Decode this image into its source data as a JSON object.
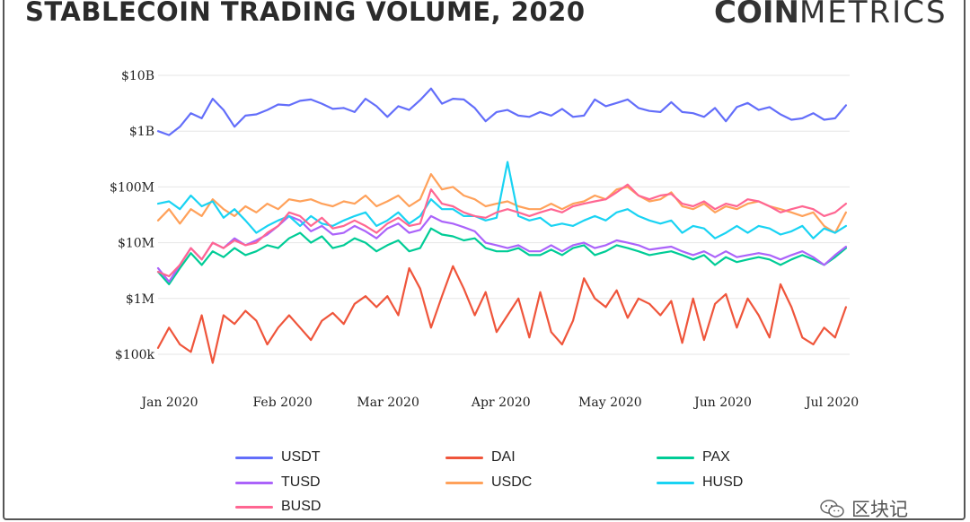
{
  "header": {
    "title": "STABLECOIN TRADING VOLUME, 2020",
    "logo_bold": "COIN",
    "logo_light": "METRICS"
  },
  "watermark": {
    "text": "区块记"
  },
  "chart_data": {
    "type": "line",
    "title": "STABLECOIN TRADING VOLUME, 2020",
    "xlabel": "",
    "ylabel": "",
    "y_scale": "log",
    "ylim": [
      100000,
      10000000000
    ],
    "y_ticks": [
      {
        "value": 10000000000,
        "label": "$10B"
      },
      {
        "value": 1000000000,
        "label": "$1B"
      },
      {
        "value": 100000000,
        "label": "$100M"
      },
      {
        "value": 10000000,
        "label": "$10M"
      },
      {
        "value": 1000000,
        "label": "$1M"
      },
      {
        "value": 100000,
        "label": "$100k"
      }
    ],
    "x_ticks": [
      {
        "value": 1,
        "label": "Jan 2020"
      },
      {
        "value": 32,
        "label": "Feb 2020"
      },
      {
        "value": 61,
        "label": "Mar 2020"
      },
      {
        "value": 92,
        "label": "Apr 2020"
      },
      {
        "value": 122,
        "label": "May 2020"
      },
      {
        "value": 153,
        "label": "Jun 2020"
      },
      {
        "value": 183,
        "label": "Jul 2020"
      }
    ],
    "x_unit": "day of year 2020",
    "grid": true,
    "legend_position": "bottom",
    "series": [
      {
        "name": "USDT",
        "color": "#636efa",
        "x": [
          1,
          4,
          7,
          10,
          13,
          16,
          19,
          22,
          25,
          28,
          31,
          34,
          37,
          40,
          43,
          46,
          49,
          52,
          55,
          58,
          61,
          64,
          67,
          70,
          73,
          76,
          79,
          82,
          85,
          88,
          91,
          94,
          97,
          100,
          103,
          106,
          109,
          112,
          115,
          118,
          121,
          124,
          127,
          130,
          133,
          136,
          139,
          142,
          145,
          148,
          151,
          154,
          157,
          160,
          163,
          166,
          169,
          172,
          175,
          178,
          181,
          184,
          187,
          190
        ],
        "values": [
          1000000000,
          850000000,
          1200000000,
          2100000000,
          1700000000,
          3800000000,
          2400000000,
          1200000000,
          1900000000,
          2000000000,
          2400000000,
          3000000000,
          2900000000,
          3500000000,
          3700000000,
          3100000000,
          2500000000,
          2600000000,
          2200000000,
          3800000000,
          2800000000,
          1800000000,
          2800000000,
          2400000000,
          3600000000,
          5800000000,
          3100000000,
          3800000000,
          3700000000,
          2600000000,
          1500000000,
          2200000000,
          2400000000,
          1900000000,
          1800000000,
          2200000000,
          1900000000,
          2500000000,
          1800000000,
          1900000000,
          3700000000,
          2800000000,
          3200000000,
          3700000000,
          2600000000,
          2300000000,
          2200000000,
          3300000000,
          2200000000,
          2100000000,
          1800000000,
          2600000000,
          1500000000,
          2700000000,
          3200000000,
          2400000000,
          2700000000,
          2000000000,
          1600000000,
          1700000000,
          2100000000,
          1600000000,
          1700000000,
          2900000000
        ]
      },
      {
        "name": "DAI",
        "color": "#ef553b",
        "x": [
          1,
          4,
          7,
          10,
          13,
          16,
          19,
          22,
          25,
          28,
          31,
          34,
          37,
          40,
          43,
          46,
          49,
          52,
          55,
          58,
          61,
          64,
          67,
          70,
          73,
          76,
          79,
          82,
          85,
          88,
          91,
          94,
          97,
          100,
          103,
          106,
          109,
          112,
          115,
          118,
          121,
          124,
          127,
          130,
          133,
          136,
          139,
          142,
          145,
          148,
          151,
          154,
          157,
          160,
          163,
          166,
          169,
          172,
          175,
          178,
          181,
          184,
          187,
          190
        ],
        "values": [
          130000,
          300000,
          150000,
          110000,
          500000,
          70000,
          500000,
          350000,
          600000,
          400000,
          150000,
          300000,
          500000,
          300000,
          180000,
          400000,
          550000,
          350000,
          800000,
          1100000,
          700000,
          1100000,
          500000,
          3500000,
          1500000,
          300000,
          1100000,
          3800000,
          1500000,
          500000,
          1300000,
          250000,
          500000,
          1000000,
          200000,
          1300000,
          250000,
          150000,
          400000,
          2300000,
          1000000,
          700000,
          1400000,
          450000,
          1000000,
          800000,
          500000,
          900000,
          160000,
          1000000,
          180000,
          800000,
          1200000,
          300000,
          1000000,
          500000,
          200000,
          1800000,
          700000,
          200000,
          150000,
          300000,
          200000,
          700000
        ]
      },
      {
        "name": "PAX",
        "color": "#00cc96",
        "x": [
          1,
          4,
          7,
          10,
          13,
          16,
          19,
          22,
          25,
          28,
          31,
          34,
          37,
          40,
          43,
          46,
          49,
          52,
          55,
          58,
          61,
          64,
          67,
          70,
          73,
          76,
          79,
          82,
          85,
          88,
          91,
          94,
          97,
          100,
          103,
          106,
          109,
          112,
          115,
          118,
          121,
          124,
          127,
          130,
          133,
          136,
          139,
          142,
          145,
          148,
          151,
          154,
          157,
          160,
          163,
          166,
          169,
          172,
          175,
          178,
          181,
          184,
          187,
          190
        ],
        "values": [
          3000000,
          1800000,
          3500000,
          6500000,
          4000000,
          7000000,
          5500000,
          8000000,
          6000000,
          7000000,
          9000000,
          8000000,
          12000000,
          15000000,
          10000000,
          13000000,
          8000000,
          9000000,
          12000000,
          10000000,
          7000000,
          9000000,
          11000000,
          7000000,
          8000000,
          18000000,
          14000000,
          13000000,
          11000000,
          12000000,
          8000000,
          7000000,
          7000000,
          8000000,
          6000000,
          6000000,
          7500000,
          6000000,
          8000000,
          9000000,
          6000000,
          7000000,
          9000000,
          8000000,
          7000000,
          6000000,
          6500000,
          7000000,
          6000000,
          5000000,
          6000000,
          4000000,
          5500000,
          4500000,
          5000000,
          5500000,
          5000000,
          4000000,
          5000000,
          6000000,
          5000000,
          4000000,
          5500000,
          8000000
        ]
      },
      {
        "name": "TUSD",
        "color": "#ab63fa",
        "x": [
          1,
          4,
          7,
          10,
          13,
          16,
          19,
          22,
          25,
          28,
          31,
          34,
          37,
          40,
          43,
          46,
          49,
          52,
          55,
          58,
          61,
          64,
          67,
          70,
          73,
          76,
          79,
          82,
          85,
          88,
          91,
          94,
          97,
          100,
          103,
          106,
          109,
          112,
          115,
          118,
          121,
          124,
          127,
          130,
          133,
          136,
          139,
          142,
          145,
          148,
          151,
          154,
          157,
          160,
          163,
          166,
          169,
          172,
          175,
          178,
          181,
          184,
          187,
          190
        ],
        "values": [
          3500000,
          2000000,
          4000000,
          8000000,
          5000000,
          10000000,
          8000000,
          12000000,
          9000000,
          11000000,
          14000000,
          20000000,
          30000000,
          25000000,
          16000000,
          20000000,
          14000000,
          15000000,
          20000000,
          16000000,
          12000000,
          18000000,
          22000000,
          15000000,
          17000000,
          30000000,
          24000000,
          22000000,
          19000000,
          16000000,
          10000000,
          9000000,
          8000000,
          9000000,
          7000000,
          7000000,
          9000000,
          7000000,
          9000000,
          10000000,
          8000000,
          9000000,
          11000000,
          10000000,
          9000000,
          7500000,
          8000000,
          8500000,
          7000000,
          6000000,
          7000000,
          5500000,
          7000000,
          5500000,
          6000000,
          6500000,
          6000000,
          5000000,
          6000000,
          7000000,
          5500000,
          4000000,
          6000000,
          8500000
        ]
      },
      {
        "name": "USDC",
        "color": "#ffa15a",
        "x": [
          1,
          4,
          7,
          10,
          13,
          16,
          19,
          22,
          25,
          28,
          31,
          34,
          37,
          40,
          43,
          46,
          49,
          52,
          55,
          58,
          61,
          64,
          67,
          70,
          73,
          76,
          79,
          82,
          85,
          88,
          91,
          94,
          97,
          100,
          103,
          106,
          109,
          112,
          115,
          118,
          121,
          124,
          127,
          130,
          133,
          136,
          139,
          142,
          145,
          148,
          151,
          154,
          157,
          160,
          163,
          166,
          169,
          172,
          175,
          178,
          181,
          184,
          187,
          190
        ],
        "values": [
          25000000,
          40000000,
          22000000,
          40000000,
          30000000,
          60000000,
          40000000,
          30000000,
          45000000,
          35000000,
          50000000,
          40000000,
          60000000,
          55000000,
          60000000,
          50000000,
          45000000,
          55000000,
          50000000,
          70000000,
          45000000,
          55000000,
          70000000,
          45000000,
          60000000,
          170000000,
          90000000,
          100000000,
          70000000,
          60000000,
          45000000,
          50000000,
          55000000,
          45000000,
          40000000,
          40000000,
          50000000,
          40000000,
          50000000,
          55000000,
          70000000,
          60000000,
          90000000,
          100000000,
          70000000,
          55000000,
          60000000,
          80000000,
          45000000,
          40000000,
          50000000,
          35000000,
          45000000,
          40000000,
          50000000,
          55000000,
          45000000,
          40000000,
          35000000,
          30000000,
          35000000,
          20000000,
          15000000,
          35000000
        ]
      },
      {
        "name": "HUSD",
        "color": "#19d3f3",
        "x": [
          1,
          4,
          7,
          10,
          13,
          16,
          19,
          22,
          25,
          28,
          31,
          34,
          37,
          40,
          43,
          46,
          49,
          52,
          55,
          58,
          61,
          64,
          67,
          70,
          73,
          76,
          79,
          82,
          85,
          88,
          91,
          94,
          97,
          100,
          103,
          106,
          109,
          112,
          115,
          118,
          121,
          124,
          127,
          130,
          133,
          136,
          139,
          142,
          145,
          148,
          151,
          154,
          157,
          160,
          163,
          166,
          169,
          172,
          175,
          178,
          181,
          184,
          187,
          190
        ],
        "values": [
          50000000,
          55000000,
          40000000,
          70000000,
          45000000,
          55000000,
          28000000,
          40000000,
          25000000,
          15000000,
          20000000,
          25000000,
          30000000,
          20000000,
          30000000,
          22000000,
          20000000,
          25000000,
          30000000,
          35000000,
          20000000,
          25000000,
          35000000,
          22000000,
          30000000,
          60000000,
          40000000,
          40000000,
          30000000,
          30000000,
          25000000,
          28000000,
          280000000,
          30000000,
          25000000,
          28000000,
          20000000,
          22000000,
          20000000,
          25000000,
          30000000,
          25000000,
          35000000,
          40000000,
          30000000,
          25000000,
          22000000,
          25000000,
          15000000,
          20000000,
          18000000,
          12000000,
          15000000,
          20000000,
          15000000,
          20000000,
          18000000,
          14000000,
          16000000,
          20000000,
          12000000,
          18000000,
          15000000,
          20000000
        ]
      },
      {
        "name": "BUSD",
        "color": "#ff6692",
        "x": [
          1,
          4,
          7,
          10,
          13,
          16,
          19,
          22,
          25,
          28,
          31,
          34,
          37,
          40,
          43,
          46,
          49,
          52,
          55,
          58,
          61,
          64,
          67,
          70,
          73,
          76,
          79,
          82,
          85,
          88,
          91,
          94,
          97,
          100,
          103,
          106,
          109,
          112,
          115,
          118,
          121,
          124,
          127,
          130,
          133,
          136,
          139,
          142,
          145,
          148,
          151,
          154,
          157,
          160,
          163,
          166,
          169,
          172,
          175,
          178,
          181,
          184,
          187,
          190
        ],
        "values": [
          3000000,
          2500000,
          4000000,
          8000000,
          5000000,
          10000000,
          8000000,
          11000000,
          9000000,
          10000000,
          15000000,
          20000000,
          35000000,
          30000000,
          20000000,
          28000000,
          18000000,
          20000000,
          25000000,
          20000000,
          15000000,
          22000000,
          28000000,
          20000000,
          22000000,
          90000000,
          50000000,
          45000000,
          35000000,
          30000000,
          28000000,
          35000000,
          40000000,
          35000000,
          30000000,
          35000000,
          40000000,
          35000000,
          45000000,
          50000000,
          55000000,
          60000000,
          80000000,
          110000000,
          70000000,
          60000000,
          70000000,
          75000000,
          50000000,
          45000000,
          55000000,
          40000000,
          50000000,
          45000000,
          60000000,
          55000000,
          45000000,
          35000000,
          40000000,
          45000000,
          40000000,
          30000000,
          35000000,
          50000000
        ]
      }
    ]
  }
}
